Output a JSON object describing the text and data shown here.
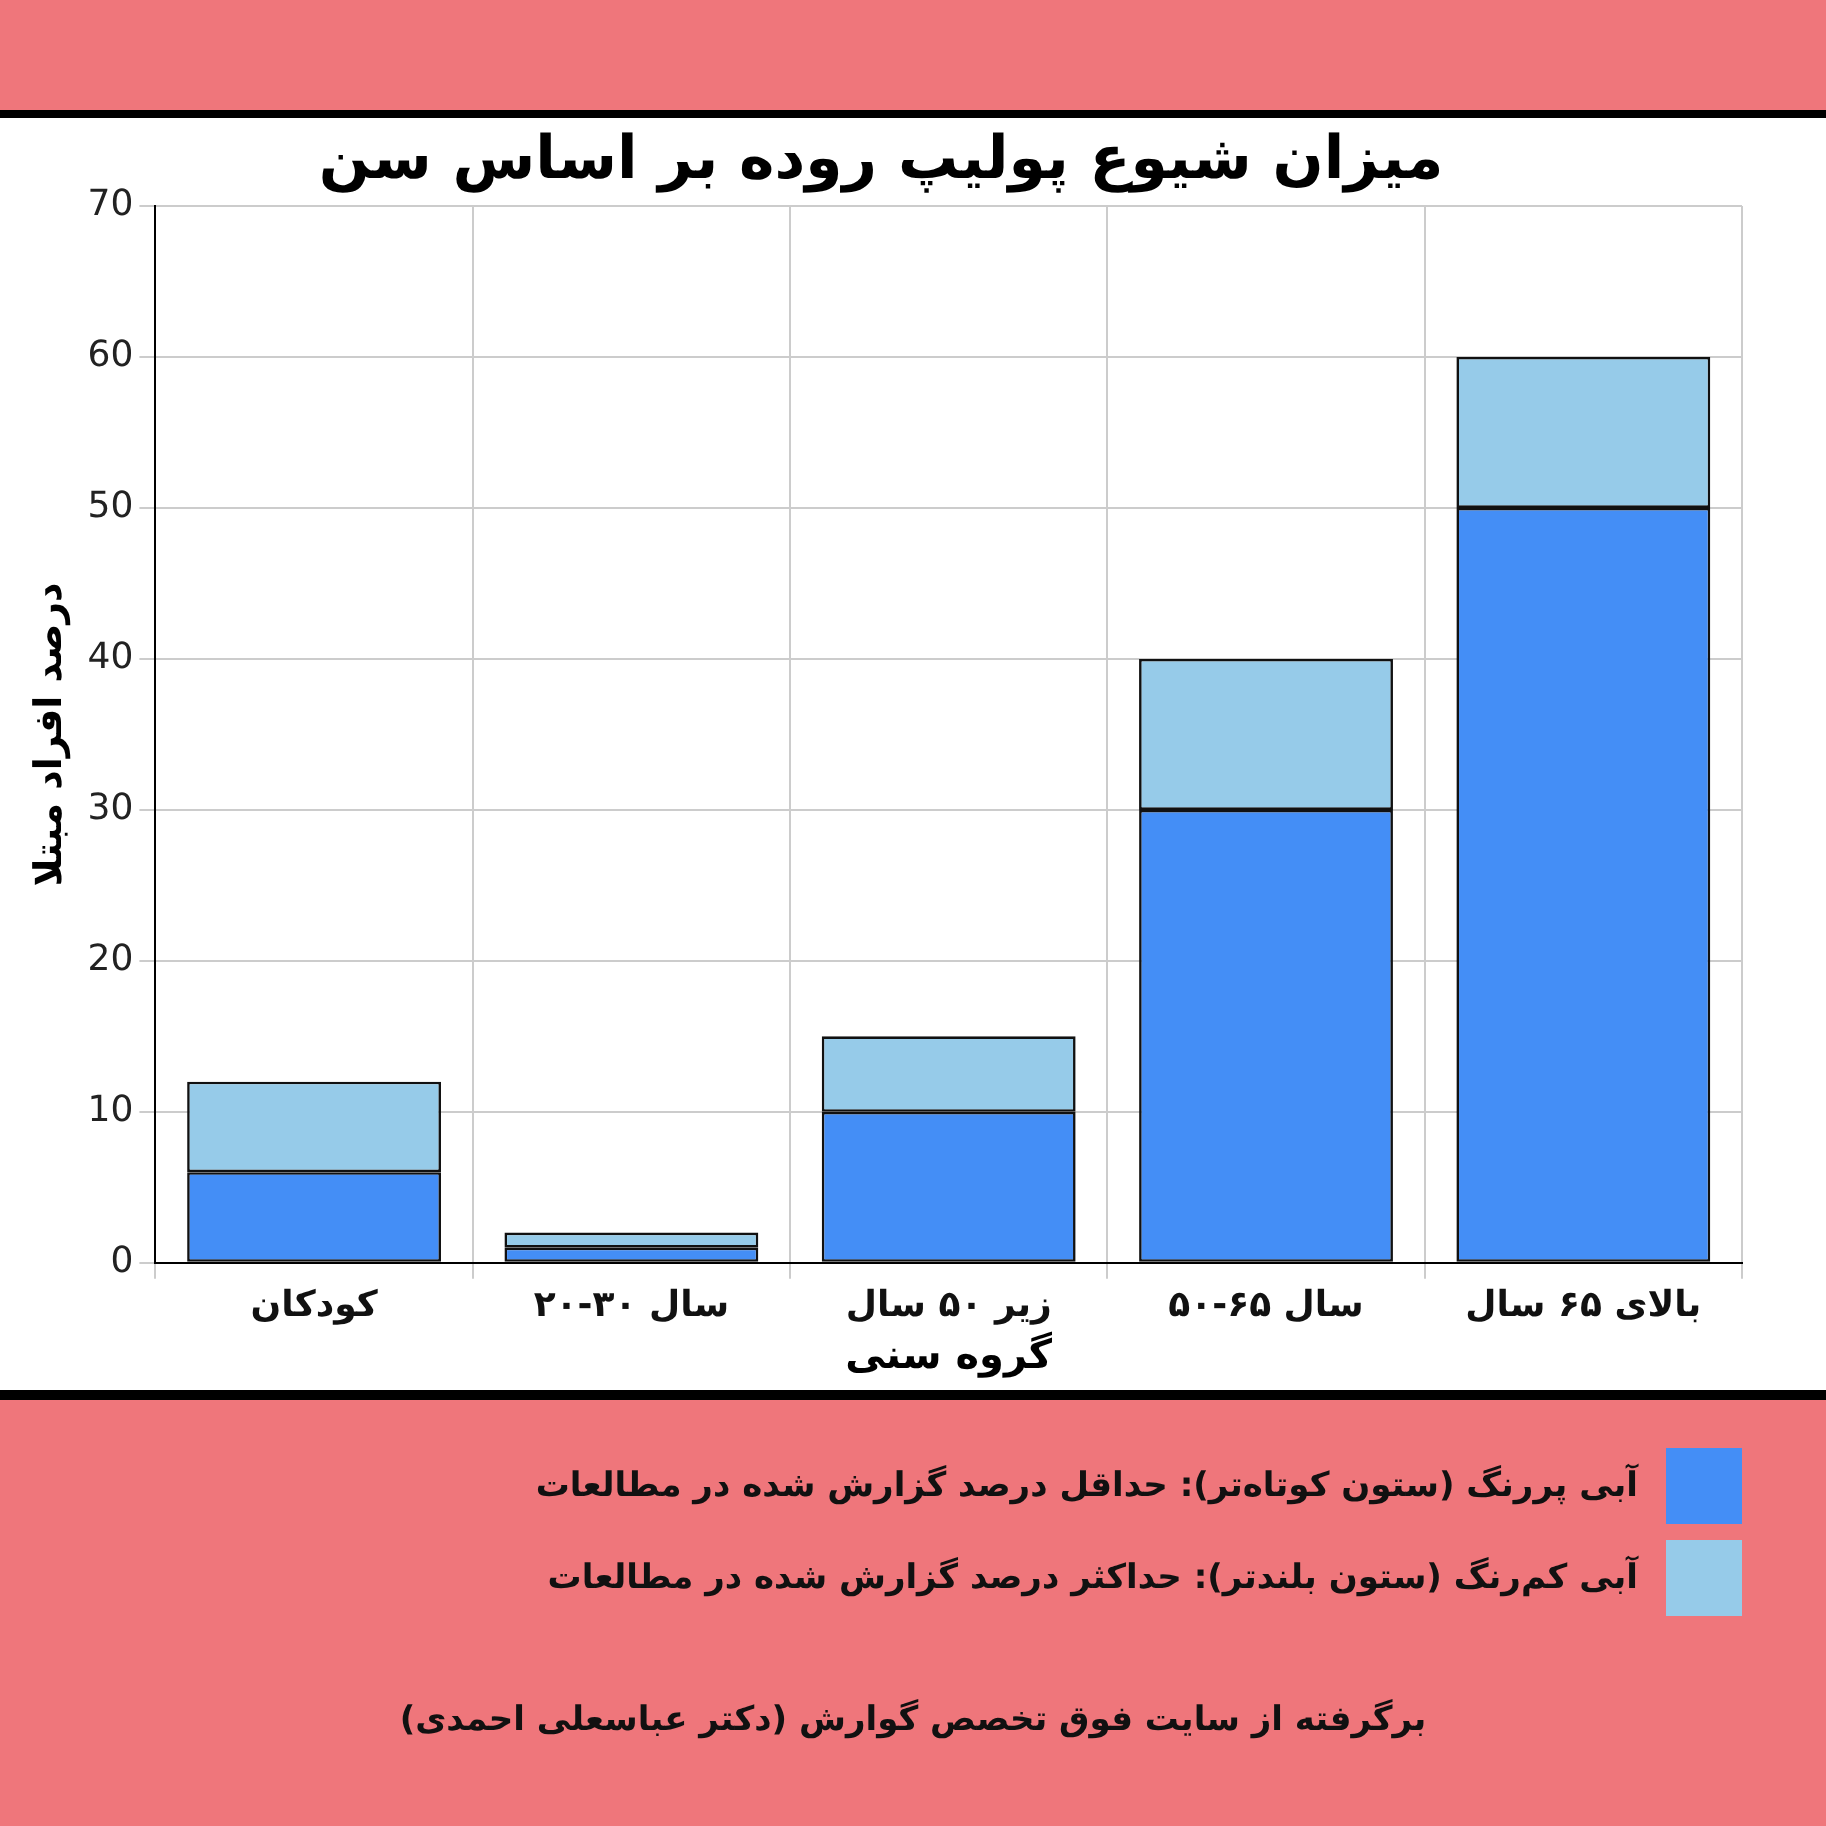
{
  "chart_data": {
    "type": "bar",
    "title": "میزان شیوع پولیپ روده بر اساس سن",
    "xlabel": "گروه سنی",
    "ylabel": "درصد افراد مبتلا",
    "categories": [
      "کودکان",
      "۲۰-۳۰ سال",
      "زیر ۵۰ سال",
      "۵۰-۶۵ سال",
      "بالای ۶۵ سال"
    ],
    "stacked": true,
    "series": [
      {
        "name": "آبی پررنگ (ستون کوتاه‌تر): حداقل درصد گزارش شده در مطالعات",
        "color": "#448ef6",
        "values": [
          6,
          1,
          10,
          30,
          50
        ]
      },
      {
        "name": "آبی کم‌رنگ (ستون بلندتر): حداکثر درصد گزارش شده در مطالعات",
        "color": "#96cbe9",
        "values": [
          6,
          1,
          5,
          10,
          10
        ]
      }
    ],
    "ylim": [
      0,
      70
    ],
    "yticks": [
      0,
      10,
      20,
      30,
      40,
      50,
      60,
      70
    ],
    "grid": true,
    "legend": "bottom",
    "annotations": [
      "برگرفته از سایت فوق تخصص گوارش (دکتر عباسعلی احمدی)"
    ]
  }
}
